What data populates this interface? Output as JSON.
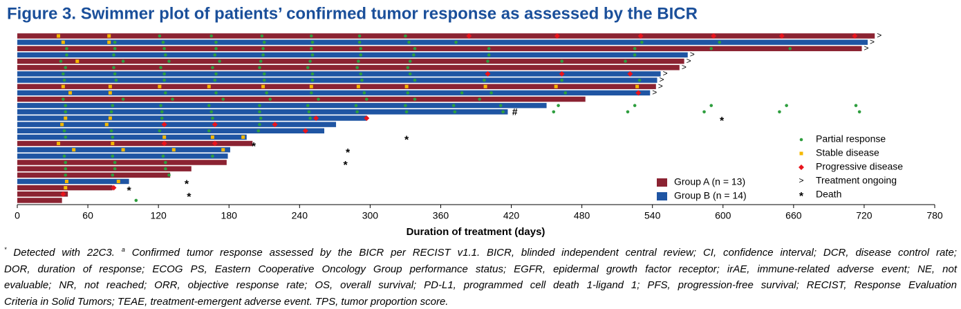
{
  "chart_data": {
    "type": "swimmer",
    "title": "Figure 3. Swimmer plot of patients’ confirmed tumor response as assessed by the BICR",
    "x_label": "Duration of treatment (days)",
    "xlim": [
      0,
      780
    ],
    "xticks": [
      0,
      60,
      120,
      180,
      240,
      300,
      360,
      420,
      480,
      540,
      600,
      660,
      720,
      780
    ],
    "series": [
      {
        "name": "Group A (n = 13)",
        "color": "#8b2332"
      },
      {
        "name": "Group B (n = 14)",
        "color": "#1f55a3"
      }
    ],
    "markers": [
      {
        "name": "Partial response",
        "color": "#2e9e3e",
        "shape": "circle"
      },
      {
        "name": "Stable disease",
        "color": "#f5b800",
        "shape": "square"
      },
      {
        "name": "Progressive disease",
        "color": "#e8141c",
        "shape": "diamond"
      }
    ],
    "ongoing_symbol": ">",
    "ongoing_label": "Treatment ongoing",
    "death_symbol": "*",
    "death_label": "Death",
    "hash_symbol": "#",
    "rows": [
      {
        "group": 0,
        "duration": 729,
        "ongoing": true,
        "events": [
          [
            121,
            165,
            208,
            250,
            291,
            330
          ],
          [
            35,
            78
          ],
          [
            384,
            459,
            530,
            592,
            650,
            712
          ]
        ]
      },
      {
        "group": 1,
        "duration": 723,
        "ongoing": true,
        "events": [
          [
            83,
            124,
            169,
            210,
            251,
            291,
            333,
            373,
            531,
            597
          ],
          [
            39,
            78
          ],
          []
        ]
      },
      {
        "group": 0,
        "duration": 718,
        "ongoing": true,
        "events": [
          [
            42,
            83,
            125,
            169,
            209,
            250,
            292,
            338,
            401,
            525,
            590,
            657
          ],
          [],
          []
        ]
      },
      {
        "group": 1,
        "duration": 570,
        "ongoing": true,
        "events": [
          [
            42,
            82,
            126,
            168,
            209,
            251,
            292,
            337,
            401,
            525
          ],
          [],
          []
        ]
      },
      {
        "group": 0,
        "duration": 567,
        "ongoing": true,
        "events": [
          [
            37,
            90,
            129,
            172,
            207,
            249,
            290,
            334,
            400,
            463,
            517
          ],
          [
            51
          ],
          []
        ]
      },
      {
        "group": 0,
        "duration": 563,
        "ongoing": true,
        "events": [
          [
            41,
            82,
            122,
            166,
            206,
            247,
            289,
            332
          ],
          [],
          []
        ]
      },
      {
        "group": 1,
        "duration": 547,
        "ongoing": true,
        "events": [
          [
            39,
            83,
            125,
            169,
            210,
            251,
            292,
            334
          ],
          [],
          [
            400,
            463,
            521
          ]
        ]
      },
      {
        "group": 1,
        "duration": 544,
        "ongoing": true,
        "events": [
          [
            40,
            84,
            125,
            168,
            210,
            251,
            293,
            338,
            397,
            463,
            529
          ],
          [],
          []
        ]
      },
      {
        "group": 0,
        "duration": 543,
        "ongoing": true,
        "events": [
          [],
          [
            39,
            79,
            121,
            163,
            209,
            250,
            290,
            331,
            398,
            458,
            527
          ],
          []
        ]
      },
      {
        "group": 1,
        "duration": 538,
        "ongoing": true,
        "events": [
          [
            126,
            169,
            212,
            250,
            295,
            332,
            378,
            403,
            466
          ],
          [
            45,
            79
          ],
          [
            528
          ]
        ]
      },
      {
        "group": 0,
        "duration": 483,
        "events": [
          [
            39,
            90,
            132,
            175,
            215,
            256,
            297,
            338,
            393
          ],
          [],
          []
        ]
      },
      {
        "group": 1,
        "duration": 450,
        "events": [
          [
            41,
            81,
            122,
            163,
            206,
            247,
            288,
            330,
            371,
            411,
            460,
            525,
            590,
            654,
            713
          ],
          [],
          []
        ]
      },
      {
        "group": 1,
        "duration": 417,
        "hash": 423,
        "events": [
          [
            41,
            80,
            123,
            165,
            206,
            248,
            289,
            331,
            372,
            413,
            456,
            519,
            584,
            648,
            716
          ],
          [],
          []
        ]
      },
      {
        "group": 1,
        "duration": 297,
        "death": 599,
        "events": [
          [
            123,
            166,
            207,
            249
          ],
          [
            41,
            79
          ],
          [
            254,
            297
          ]
        ]
      },
      {
        "group": 1,
        "duration": 271,
        "events": [
          [
            206
          ],
          [
            38,
            76
          ],
          [
            125,
            168,
            219
          ]
        ]
      },
      {
        "group": 1,
        "duration": 261,
        "events": [
          [
            40,
            80,
            121,
            163,
            205
          ],
          [],
          [
            245
          ]
        ]
      },
      {
        "group": 1,
        "duration": 195,
        "death": 331,
        "events": [
          [
            41,
            81
          ],
          [
            125,
            166,
            192
          ],
          []
        ]
      },
      {
        "group": 0,
        "duration": 200,
        "death": 201,
        "events": [
          [],
          [
            35,
            81
          ],
          [
            125,
            168
          ]
        ]
      },
      {
        "group": 1,
        "duration": 181,
        "death": 281,
        "events": [
          [],
          [
            48,
            90,
            133,
            175
          ],
          []
        ]
      },
      {
        "group": 1,
        "duration": 179,
        "events": [
          [
            40,
            81,
            124,
            166
          ],
          [],
          []
        ]
      },
      {
        "group": 0,
        "duration": 178,
        "death": 279,
        "events": [
          [
            41,
            83,
            126
          ],
          [],
          []
        ]
      },
      {
        "group": 0,
        "duration": 148,
        "events": [
          [
            41,
            83,
            126
          ],
          [],
          []
        ]
      },
      {
        "group": 0,
        "duration": 130,
        "events": [
          [
            41,
            81,
            129
          ],
          [],
          []
        ]
      },
      {
        "group": 1,
        "duration": 95,
        "death": 144,
        "events": [
          [],
          [
            42,
            86
          ],
          []
        ]
      },
      {
        "group": 0,
        "duration": 81,
        "death": 95,
        "events": [
          [],
          [
            41
          ],
          [
            82
          ]
        ]
      },
      {
        "group": 0,
        "duration": 43,
        "death": 146,
        "events": [
          [],
          [],
          [
            39
          ]
        ]
      },
      {
        "group": 0,
        "duration": 38,
        "events": [
          [
            101
          ],
          [],
          []
        ]
      }
    ]
  },
  "footnote": {
    "line1": [
      {
        "text": "*",
        "sup": true
      },
      {
        "text": " Detected with 22C3. "
      },
      {
        "text": "a",
        "sup": true
      },
      {
        "text": " Confirmed tumor response assessed by the BICR per RECIST v1.1. BICR, blinded independent central review; CI, confidence interval; DCR, disease control rate;"
      }
    ],
    "lines": [
      "DOR, duration of response; ECOG PS, Eastern Cooperative Oncology Group performance status; EGFR, epidermal growth factor receptor; irAE, immune-related adverse event; NE, not",
      "evaluable; NR, not reached; ORR, objective response rate; OS, overall survival; PD-L1, programmed cell death 1-ligand 1; PFS, progression-free survival; RECIST, Response Evaluation",
      "Criteria in Solid Tumors; TEAE, treatment-emergent adverse event. TPS, tumor proportion score."
    ]
  }
}
